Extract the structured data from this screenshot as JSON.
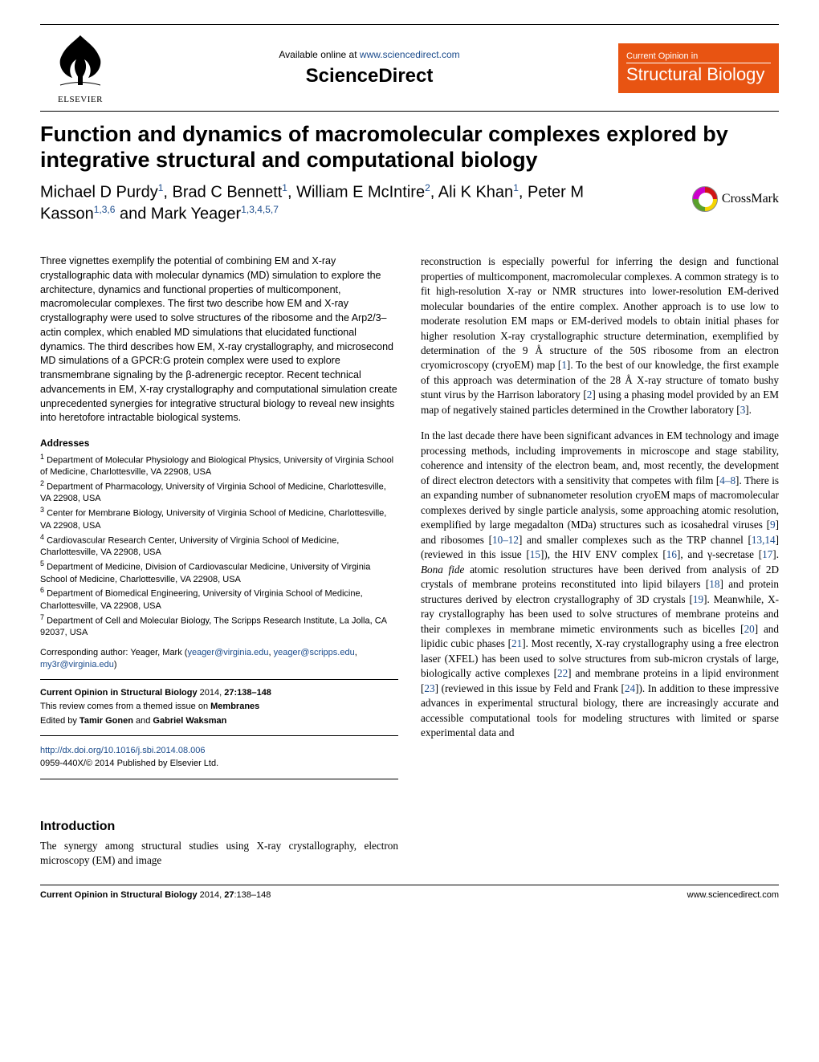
{
  "header": {
    "available_prefix": "Available online at ",
    "available_url": "www.sciencedirect.com",
    "sciencedirect": "ScienceDirect",
    "elsevier": "ELSEVIER",
    "badge_top": "Current Opinion in",
    "badge_bottom": "Structural Biology"
  },
  "title": "Function and dynamics of macromolecular complexes explored by integrative structural and computational biology",
  "authors_html": "Michael D Purdy<sup>1</sup>, Brad C Bennett<sup>1</sup>, William E McIntire<sup>2</sup>, Ali K Khan<sup>1</sup>, Peter M Kasson<sup>1,3,6</sup> and Mark Yeager<sup>1,3,4,5,7</sup>",
  "crossmark_label": "CrossMark",
  "abstract": "Three vignettes exemplify the potential of combining EM and X-ray crystallographic data with molecular dynamics (MD) simulation to explore the architecture, dynamics and functional properties of multicomponent, macromolecular complexes. The first two describe how EM and X-ray crystallography were used to solve structures of the ribosome and the Arp2/3–actin complex, which enabled MD simulations that elucidated functional dynamics. The third describes how EM, X-ray crystallography, and microsecond MD simulations of a GPCR:G protein complex were used to explore transmembrane signaling by the β-adrenergic receptor. Recent technical advancements in EM, X-ray crystallography and computational simulation create unprecedented synergies for integrative structural biology to reveal new insights into heretofore intractable biological systems.",
  "addresses_heading": "Addresses",
  "addresses": [
    "Department of Molecular Physiology and Biological Physics, University of Virginia School of Medicine, Charlottesville, VA 22908, USA",
    "Department of Pharmacology, University of Virginia School of Medicine, Charlottesville, VA 22908, USA",
    "Center for Membrane Biology, University of Virginia School of Medicine, Charlottesville, VA 22908, USA",
    "Cardiovascular Research Center, University of Virginia School of Medicine, Charlottesville, VA 22908, USA",
    "Department of Medicine, Division of Cardiovascular Medicine, University of Virginia School of Medicine, Charlottesville, VA 22908, USA",
    "Department of Biomedical Engineering, University of Virginia School of Medicine, Charlottesville, VA 22908, USA",
    "Department of Cell and Molecular Biology, The Scripps Research Institute, La Jolla, CA 92037, USA"
  ],
  "corresponding": {
    "prefix": "Corresponding author: Yeager, Mark (",
    "emails": [
      "yeager@virginia.edu",
      "yeager@scripps.edu",
      "my3r@virginia.edu"
    ],
    "suffix": ")"
  },
  "info": {
    "journal_line_prefix": "Current Opinion in Structural Biology",
    "journal_line_suffix": " 2014, ",
    "volume_pages": "27:138–148",
    "theme_prefix": "This review comes from a themed issue on ",
    "theme": "Membranes",
    "edited_prefix": "Edited by ",
    "editors": "Tamir Gonen",
    "editors_and": " and ",
    "editors2": "Gabriel Waksman"
  },
  "doi": {
    "url": "http://dx.doi.org/10.1016/j.sbi.2014.08.006",
    "copyright": "0959-440X/© 2014 Published by Elsevier Ltd."
  },
  "intro_heading": "Introduction",
  "left_body": "The synergy among structural studies using X-ray crystallography, electron microscopy (EM) and image",
  "right_body_1": "reconstruction is especially powerful for inferring the design and functional properties of multicomponent, macromolecular complexes. A common strategy is to fit high-resolution X-ray or NMR structures into lower-resolution EM-derived molecular boundaries of the entire complex. Another approach is to use low to moderate resolution EM maps or EM-derived models to obtain initial phases for higher resolution X-ray crystallographic structure determination, exemplified by determination of the 9 Å structure of the 50S ribosome from an electron cryomicroscopy (cryoEM) map [<a class='ref'>1</a>]. To the best of our knowledge, the first example of this approach was determination of the 28 Å X-ray structure of tomato bushy stunt virus by the Harrison laboratory [<a class='ref'>2</a>] using a phasing model provided by an EM map of negatively stained particles determined in the Crowther laboratory [<a class='ref'>3</a>].",
  "right_body_2": "In the last decade there have been significant advances in EM technology and image processing methods, including improvements in microscope and stage stability, coherence and intensity of the electron beam, and, most recently, the development of direct electron detectors with a sensitivity that competes with film [<a class='ref'>4–8</a>]. There is an expanding number of subnanometer resolution cryoEM maps of macromolecular complexes derived by single particle analysis, some approaching atomic resolution, exemplified by large megadalton (MDa) structures such as icosahedral viruses [<a class='ref'>9</a>] and ribosomes [<a class='ref'>10–12</a>] and smaller complexes such as the TRP channel [<a class='ref'>13,14</a>] (reviewed in this issue [<a class='ref'>15</a>]), the HIV ENV complex [<a class='ref'>16</a>], and γ-secretase [<a class='ref'>17</a>]. <i>Bona fide</i> atomic resolution structures have been derived from analysis of 2D crystals of membrane proteins reconstituted into lipid bilayers [<a class='ref'>18</a>] and protein structures derived by electron crystallography of 3D crystals [<a class='ref'>19</a>]. Meanwhile, X-ray crystallography has been used to solve structures of membrane proteins and their complexes in membrane mimetic environments such as bicelles [<a class='ref'>20</a>] and lipidic cubic phases [<a class='ref'>21</a>]. Most recently, X-ray crystallography using a free electron laser (XFEL) has been used to solve structures from sub-micron crystals of large, biologically active complexes [<a class='ref'>22</a>] and membrane proteins in a lipid environment [<a class='ref'>23</a>] (reviewed in this issue by Feld and Frank [<a class='ref'>24</a>]). In addition to these impressive advances in experimental structural biology, there are increasingly accurate and accessible computational tools for modeling structures with limited or sparse experimental data and",
  "footer_left_prefix": "Current Opinion in Structural Biology",
  "footer_left_suffix": " 2014, ",
  "footer_left_bold": "27",
  "footer_left_pages": ":138–148",
  "footer_right": "www.sciencedirect.com",
  "colors": {
    "link": "#1a4b8c",
    "badge": "#e85412"
  }
}
